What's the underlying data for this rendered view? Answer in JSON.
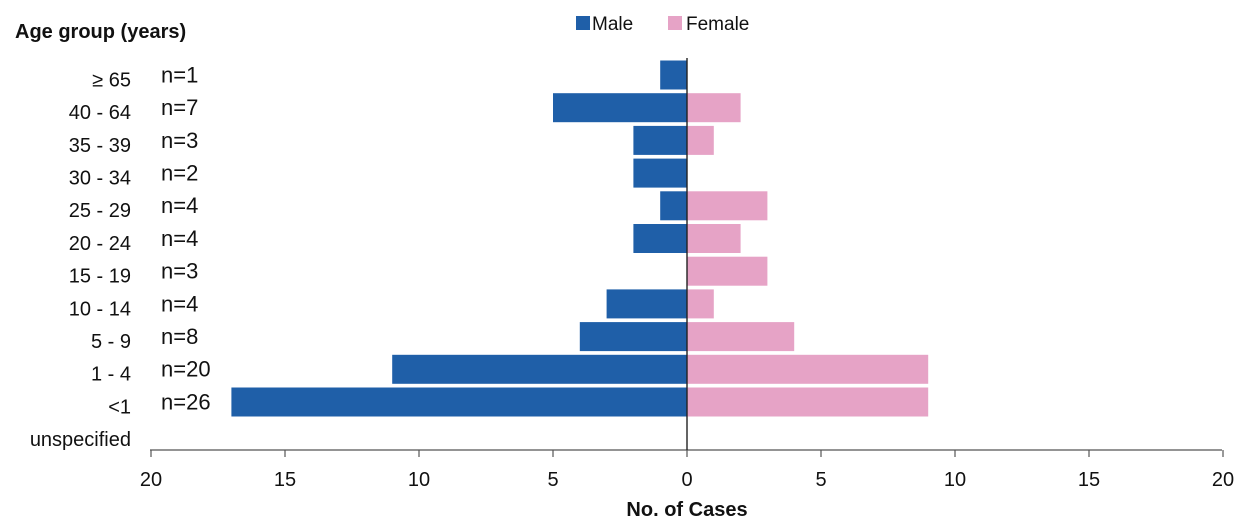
{
  "chart_data": {
    "type": "bar",
    "orientation": "horizontal-population-pyramid",
    "ylabel": "Age group (years)",
    "xlabel": "No. of Cases",
    "categories": [
      "≥ 65",
      "40 - 64",
      "35 - 39",
      "30 - 34",
      "25 - 29",
      "20 - 24",
      "15 - 19",
      "10 - 14",
      "5 - 9",
      "1 - 4",
      "<1",
      "unspecified"
    ],
    "n_labels": [
      "n=1",
      "n=7",
      "n=3",
      "n=2",
      "n=4",
      "n=4",
      "n=3",
      "n=4",
      "n=8",
      "n=20",
      "n=26",
      ""
    ],
    "series": [
      {
        "name": "Male",
        "color": "#1f5fa8",
        "values": [
          1,
          5,
          2,
          2,
          1,
          2,
          0,
          3,
          4,
          11,
          17,
          0
        ]
      },
      {
        "name": "Female",
        "color": "#e6a3c6",
        "values": [
          0,
          2,
          1,
          0,
          3,
          2,
          3,
          1,
          4,
          9,
          9,
          0
        ]
      }
    ],
    "xlim": [
      -20,
      20
    ],
    "xticks": [
      -20,
      -15,
      -10,
      -5,
      0,
      5,
      10,
      15,
      20
    ],
    "xtick_labels": [
      "20",
      "15",
      "10",
      "5",
      "0",
      "5",
      "10",
      "15",
      "20"
    ],
    "legend": "top-center",
    "grid": false
  }
}
